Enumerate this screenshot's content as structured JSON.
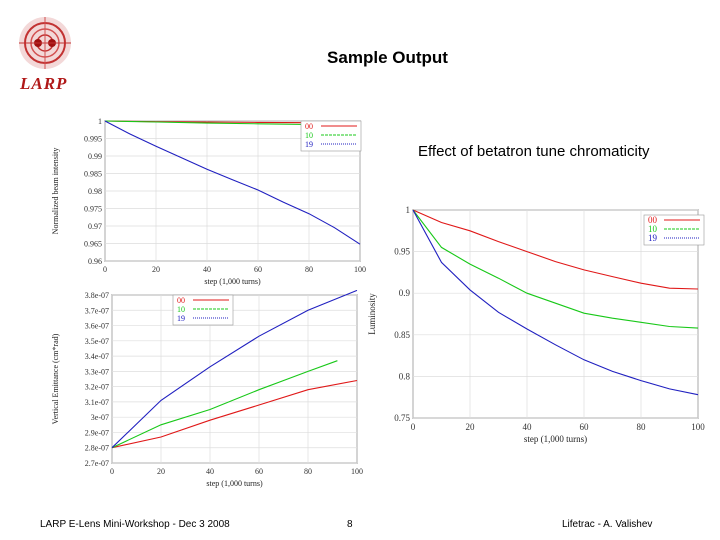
{
  "slide": {
    "title": "Sample Output",
    "subtitle": "Effect of betatron tune chromaticity",
    "logo_text": "LARP",
    "footer_left": "LARP E-Lens Mini-Workshop - Dec 3 2008",
    "footer_center": "8",
    "footer_right": "Lifetrac - A. Valishev"
  },
  "colors": {
    "s00": "#e01818",
    "s10": "#18c818",
    "s19": "#2020c0",
    "logo": "#b01818"
  },
  "chart_data": [
    {
      "id": "intensity",
      "type": "line",
      "title": "",
      "xlabel": "step (1,000 turns)",
      "ylabel": "Normalized beam intensity",
      "xlim": [
        0,
        100
      ],
      "ylim": [
        0.96,
        1.0
      ],
      "xticks": [
        "0",
        "20",
        "40",
        "60",
        "80",
        "100"
      ],
      "yticks": [
        "1",
        "0.995",
        "0.99",
        "0.985",
        "0.98",
        "0.975",
        "0.97",
        "0.965",
        "0.96"
      ],
      "legend": [
        "00",
        "10",
        "19"
      ],
      "series": [
        {
          "name": "00",
          "x": [
            0,
            20,
            40,
            60,
            80,
            100
          ],
          "values": [
            1.0,
            0.9998,
            0.9997,
            0.9996,
            0.9995,
            0.9994
          ]
        },
        {
          "name": "10",
          "x": [
            0,
            20,
            40,
            60,
            80,
            100
          ],
          "values": [
            1.0,
            0.9997,
            0.9994,
            0.9992,
            0.999,
            0.9988
          ]
        },
        {
          "name": "19",
          "x": [
            0,
            10,
            20,
            30,
            40,
            50,
            60,
            70,
            80,
            90,
            100
          ],
          "values": [
            1.0,
            0.9962,
            0.9928,
            0.9895,
            0.9862,
            0.9832,
            0.9803,
            0.9768,
            0.9735,
            0.9695,
            0.9648
          ]
        }
      ]
    },
    {
      "id": "emittance",
      "type": "line",
      "title": "",
      "xlabel": "step (1,000 turns)",
      "ylabel": "Vertical Emittance (cm*rad)",
      "xlim": [
        0,
        100
      ],
      "ylim": [
        2.7e-07,
        3.8e-07
      ],
      "xticks": [
        "0",
        "20",
        "40",
        "60",
        "80",
        "100"
      ],
      "yticks": [
        "3.8e-07",
        "3.7e-07",
        "3.6e-07",
        "3.5e-07",
        "3.4e-07",
        "3.3e-07",
        "3.2e-07",
        "3.1e-07",
        "3e-07",
        "2.9e-07",
        "2.8e-07",
        "2.7e-07"
      ],
      "legend": [
        "00",
        "10",
        "19"
      ],
      "series": [
        {
          "name": "00",
          "x": [
            0,
            20,
            40,
            60,
            80,
            100
          ],
          "values": [
            2.8e-07,
            2.87e-07,
            2.98e-07,
            3.08e-07,
            3.18e-07,
            3.24e-07
          ]
        },
        {
          "name": "10",
          "x": [
            0,
            20,
            40,
            60,
            80,
            92
          ],
          "values": [
            2.8e-07,
            2.95e-07,
            3.05e-07,
            3.18e-07,
            3.3e-07,
            3.37e-07
          ]
        },
        {
          "name": "19",
          "x": [
            0,
            20,
            40,
            60,
            80,
            100
          ],
          "values": [
            2.8e-07,
            3.11e-07,
            3.33e-07,
            3.53e-07,
            3.7e-07,
            3.83e-07
          ]
        }
      ]
    },
    {
      "id": "luminosity",
      "type": "line",
      "title": "",
      "xlabel": "step (1,000 turns)",
      "ylabel": "Luminosity",
      "xlim": [
        0,
        100
      ],
      "ylim": [
        0.75,
        1.0
      ],
      "xticks": [
        "0",
        "20",
        "40",
        "60",
        "80",
        "100"
      ],
      "yticks": [
        "1",
        "0.95",
        "0.9",
        "0.85",
        "0.8",
        "0.75"
      ],
      "legend": [
        "00",
        "10",
        "19"
      ],
      "series": [
        {
          "name": "00",
          "x": [
            0,
            10,
            20,
            30,
            40,
            50,
            60,
            70,
            80,
            90,
            100
          ],
          "values": [
            1.0,
            0.985,
            0.975,
            0.962,
            0.95,
            0.938,
            0.928,
            0.92,
            0.912,
            0.906,
            0.905
          ]
        },
        {
          "name": "10",
          "x": [
            0,
            10,
            20,
            30,
            40,
            50,
            60,
            70,
            80,
            90,
            100
          ],
          "values": [
            1.0,
            0.955,
            0.935,
            0.918,
            0.9,
            0.888,
            0.876,
            0.87,
            0.865,
            0.86,
            0.858
          ]
        },
        {
          "name": "19",
          "x": [
            0,
            10,
            20,
            30,
            40,
            50,
            60,
            70,
            80,
            90,
            100
          ],
          "values": [
            1.0,
            0.937,
            0.904,
            0.877,
            0.857,
            0.838,
            0.82,
            0.806,
            0.795,
            0.785,
            0.778
          ]
        }
      ]
    }
  ]
}
